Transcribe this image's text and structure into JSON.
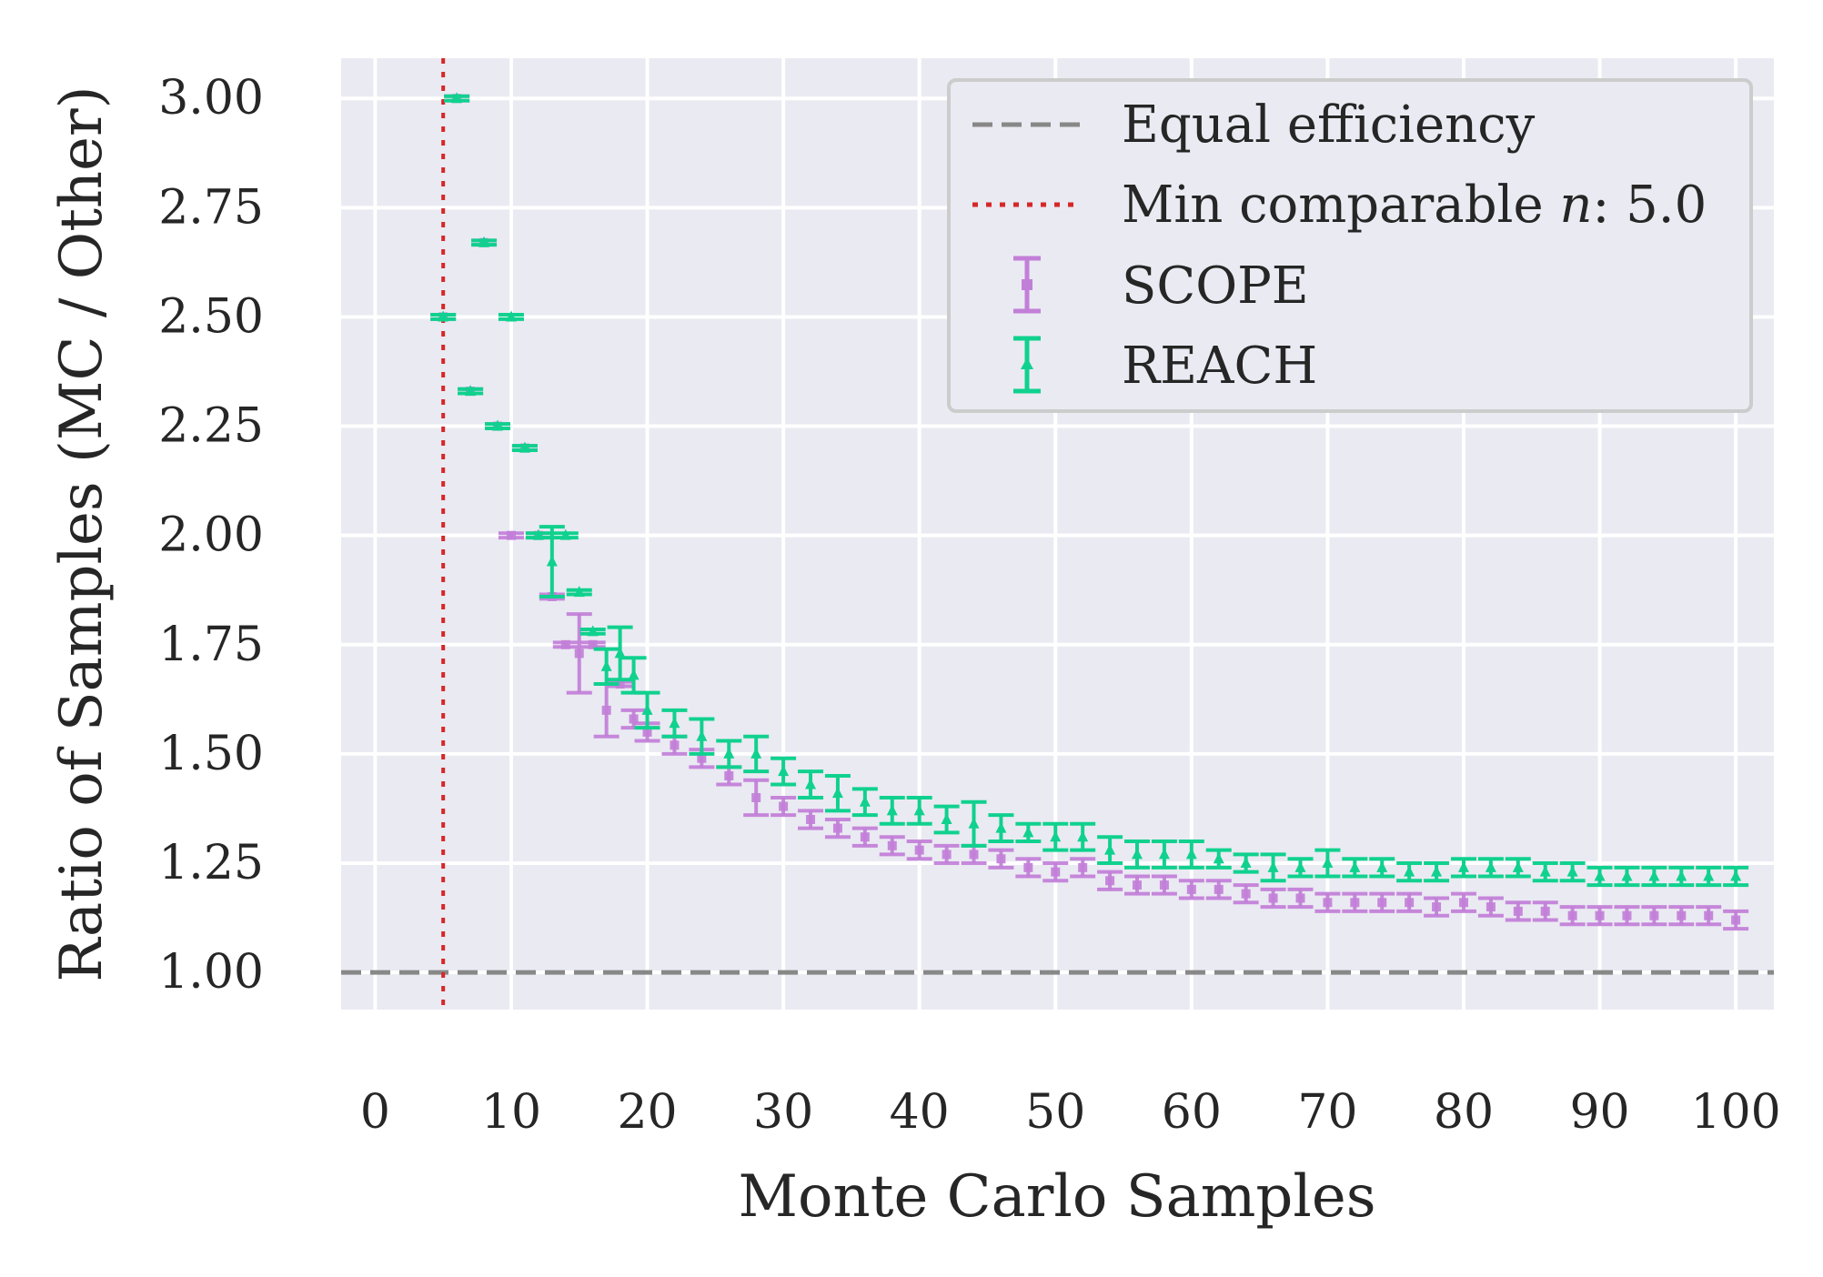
{
  "chart_data": {
    "type": "scatter",
    "xlabel": "Monte Carlo Samples",
    "ylabel": "Ratio of Samples (MC / Other)",
    "xlim": [
      0,
      100
    ],
    "ylim": [
      0.9,
      3.0
    ],
    "xticks": [
      "0",
      "10",
      "20",
      "30",
      "40",
      "50",
      "60",
      "70",
      "80",
      "90",
      "100"
    ],
    "yticks": [
      "1.00",
      "1.25",
      "1.50",
      "1.75",
      "2.00",
      "2.25",
      "2.50",
      "2.75",
      "3.00"
    ],
    "grid": true,
    "legend_position": "top-right",
    "reference_lines": [
      {
        "name": "equal-efficiency",
        "label": "Equal efficiency",
        "orientation": "horizontal",
        "value": 1.0,
        "color": "#888888",
        "style": "dashed"
      },
      {
        "name": "min-comparable",
        "label_prefix": "Min comparable ",
        "label_var": "n",
        "label_suffix": ": 5.0",
        "orientation": "vertical",
        "value": 5.0,
        "color": "#d62728",
        "style": "dotted"
      }
    ],
    "series": [
      {
        "name": "SCOPE",
        "color": "#c27fd8",
        "marker": "square",
        "x": [
          5,
          6,
          7,
          8,
          9,
          10,
          11,
          12,
          13,
          14,
          15,
          16,
          17,
          18,
          19,
          20,
          22,
          24,
          26,
          28,
          30,
          32,
          34,
          36,
          38,
          40,
          42,
          44,
          46,
          48,
          50,
          52,
          54,
          56,
          58,
          60,
          62,
          64,
          66,
          68,
          70,
          72,
          74,
          76,
          78,
          80,
          82,
          84,
          86,
          88,
          90,
          92,
          94,
          96,
          98,
          100
        ],
        "y": [
          2.5,
          3.0,
          2.33,
          2.67,
          2.25,
          2.0,
          2.2,
          2.0,
          1.86,
          1.75,
          1.73,
          1.75,
          1.6,
          1.66,
          1.58,
          1.55,
          1.52,
          1.49,
          1.45,
          1.4,
          1.38,
          1.35,
          1.33,
          1.31,
          1.29,
          1.28,
          1.27,
          1.27,
          1.26,
          1.24,
          1.23,
          1.24,
          1.21,
          1.2,
          1.2,
          1.19,
          1.19,
          1.18,
          1.17,
          1.17,
          1.16,
          1.16,
          1.16,
          1.16,
          1.15,
          1.16,
          1.15,
          1.14,
          1.14,
          1.13,
          1.13,
          1.13,
          1.13,
          1.13,
          1.13,
          1.12
        ],
        "err": [
          0.005,
          0.005,
          0.005,
          0.005,
          0.005,
          0.005,
          0.005,
          0.005,
          0.005,
          0.005,
          0.09,
          0.005,
          0.06,
          0.005,
          0.02,
          0.02,
          0.02,
          0.02,
          0.02,
          0.04,
          0.02,
          0.02,
          0.02,
          0.02,
          0.02,
          0.02,
          0.02,
          0.02,
          0.02,
          0.02,
          0.02,
          0.02,
          0.02,
          0.02,
          0.02,
          0.02,
          0.02,
          0.02,
          0.02,
          0.02,
          0.02,
          0.02,
          0.02,
          0.02,
          0.02,
          0.02,
          0.02,
          0.02,
          0.02,
          0.02,
          0.02,
          0.02,
          0.02,
          0.02,
          0.02,
          0.02
        ]
      },
      {
        "name": "REACH",
        "color": "#10d18e",
        "marker": "triangle",
        "x": [
          5,
          6,
          7,
          8,
          9,
          10,
          11,
          12,
          13,
          14,
          15,
          16,
          17,
          18,
          19,
          20,
          22,
          24,
          26,
          28,
          30,
          32,
          34,
          36,
          38,
          40,
          42,
          44,
          46,
          48,
          50,
          52,
          54,
          56,
          58,
          60,
          62,
          64,
          66,
          68,
          70,
          72,
          74,
          76,
          78,
          80,
          82,
          84,
          86,
          88,
          90,
          92,
          94,
          96,
          98,
          100
        ],
        "y": [
          2.5,
          3.0,
          2.33,
          2.67,
          2.25,
          2.5,
          2.2,
          2.0,
          1.94,
          2.0,
          1.87,
          1.78,
          1.7,
          1.73,
          1.68,
          1.6,
          1.57,
          1.54,
          1.5,
          1.5,
          1.46,
          1.43,
          1.41,
          1.39,
          1.37,
          1.37,
          1.35,
          1.34,
          1.33,
          1.32,
          1.31,
          1.31,
          1.28,
          1.27,
          1.27,
          1.27,
          1.26,
          1.25,
          1.24,
          1.24,
          1.25,
          1.24,
          1.24,
          1.23,
          1.23,
          1.24,
          1.24,
          1.24,
          1.23,
          1.23,
          1.22,
          1.22,
          1.22,
          1.22,
          1.22,
          1.22
        ],
        "err": [
          0.005,
          0.005,
          0.005,
          0.005,
          0.005,
          0.005,
          0.005,
          0.005,
          0.08,
          0.005,
          0.005,
          0.005,
          0.04,
          0.06,
          0.04,
          0.04,
          0.03,
          0.04,
          0.03,
          0.04,
          0.03,
          0.03,
          0.04,
          0.03,
          0.03,
          0.03,
          0.03,
          0.05,
          0.03,
          0.02,
          0.03,
          0.03,
          0.03,
          0.03,
          0.03,
          0.03,
          0.02,
          0.02,
          0.03,
          0.02,
          0.03,
          0.02,
          0.02,
          0.02,
          0.02,
          0.02,
          0.02,
          0.02,
          0.02,
          0.02,
          0.02,
          0.02,
          0.02,
          0.02,
          0.02,
          0.02
        ]
      }
    ]
  }
}
